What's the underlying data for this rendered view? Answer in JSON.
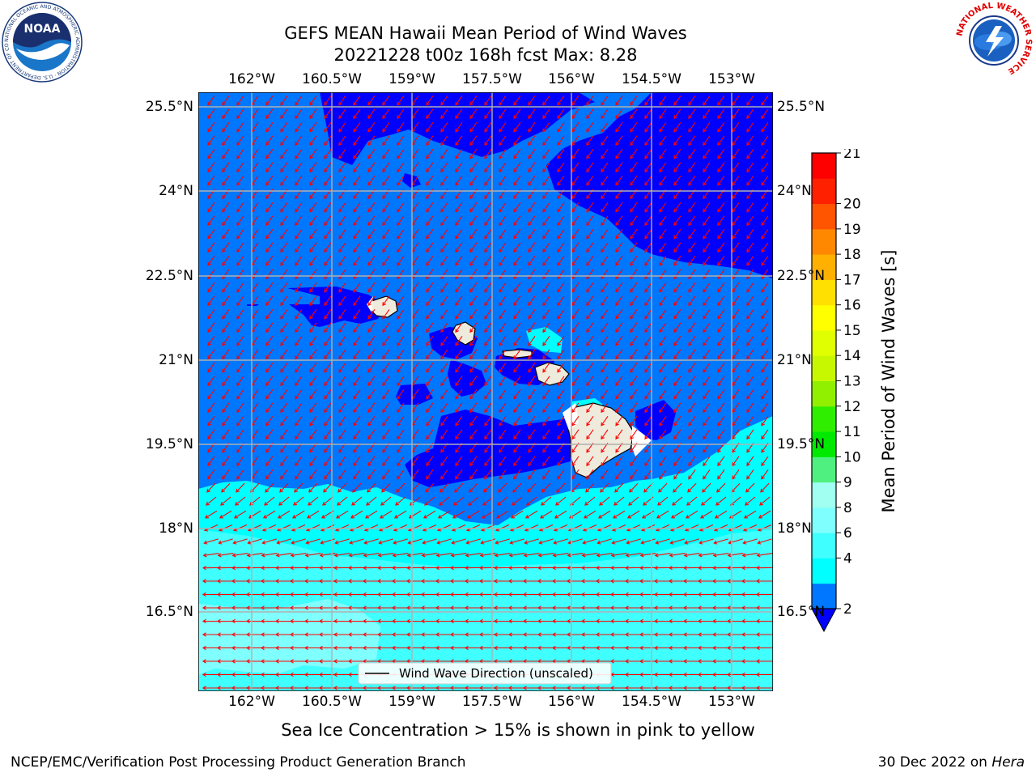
{
  "header": {
    "title_line1": "GEFS MEAN Hawaii Mean Period of Wind Waves",
    "title_line2": "20221228 t00z 168h fcst   Max: 8.28"
  },
  "logos": {
    "noaa_text": "NOAA",
    "noaa_ring_text": "NATIONAL OCEANIC AND ATMOSPHERIC ADMINISTRATION · U.S. DEPARTMENT OF COMMERCE",
    "nws_ring_text": "NATIONAL WEATHER SERVICE"
  },
  "map": {
    "lon_labels": [
      "162°W",
      "160.5°W",
      "159°W",
      "157.5°W",
      "156°W",
      "154.5°W",
      "153°W"
    ],
    "lat_labels": [
      "25.5°N",
      "24°N",
      "22.5°N",
      "21°N",
      "19.5°N",
      "18°N",
      "16.5°N"
    ],
    "legend_label": "Wind Wave Direction (unscaled)",
    "wind_arrow_color": "#ff0000",
    "land_color": "#efebdc"
  },
  "colorbar": {
    "label": "Mean Period of Wind Waves [s]",
    "ticks": [
      "2",
      "4",
      "6",
      "8",
      "9",
      "10",
      "11",
      "12",
      "13",
      "14",
      "15",
      "16",
      "17",
      "18",
      "19",
      "20",
      "21"
    ],
    "colors": [
      "#0077ff",
      "#00ffff",
      "#40ffff",
      "#80ffff",
      "#a0fff0",
      "#50f080",
      "#00ea00",
      "#30ee00",
      "#90f000",
      "#c8f800",
      "#e0ff00",
      "#ffff00",
      "#ffe000",
      "#ffb000",
      "#ff8800",
      "#ff5500",
      "#ff2000",
      "#ff0000"
    ],
    "under_color": "#0000ff"
  },
  "caption": "Sea Ice Concentration > 15% is shown in pink to yellow",
  "footer": {
    "left": "NCEP/EMC/Verification Post Processing Product Generation Branch",
    "right_date": "30 Dec 2022 on",
    "right_host": "Hera"
  }
}
